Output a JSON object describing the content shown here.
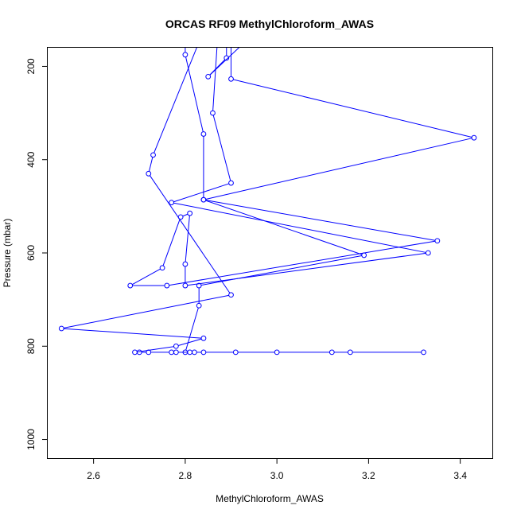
{
  "chart_data": {
    "type": "line",
    "title": "ORCAS RF09 MethylChloroform_AWAS",
    "xlabel": "MethylChloroform_AWAS",
    "ylabel": "Pressure (mbar)",
    "xlim": [
      2.5,
      3.47
    ],
    "ylim": [
      1040,
      160
    ],
    "y_reversed": true,
    "x_ticks": [
      "2.6",
      "2.8",
      "3.0",
      "3.2",
      "3.4"
    ],
    "y_ticks": [
      "200",
      "400",
      "600",
      "800",
      "1000"
    ],
    "grid": false,
    "legend": "none",
    "series": [
      {
        "color": "#0000ff",
        "marker": "open-circle",
        "points": [
          {
            "x": 3.32,
            "y": 813
          },
          {
            "x": 3.16,
            "y": 813
          },
          {
            "x": 3.12,
            "y": 813
          },
          {
            "x": 3.0,
            "y": 813
          },
          {
            "x": 2.91,
            "y": 813
          },
          {
            "x": 2.84,
            "y": 813
          },
          {
            "x": 2.82,
            "y": 813
          },
          {
            "x": 2.81,
            "y": 813
          },
          {
            "x": 2.78,
            "y": 813
          },
          {
            "x": 2.77,
            "y": 813
          },
          {
            "x": 2.72,
            "y": 813
          },
          {
            "x": 2.7,
            "y": 813
          },
          {
            "x": 2.69,
            "y": 813
          },
          {
            "x": 2.78,
            "y": 800
          },
          {
            "x": 2.84,
            "y": 783
          },
          {
            "x": 2.53,
            "y": 762
          },
          {
            "x": 2.9,
            "y": 690
          },
          {
            "x": 2.72,
            "y": 430
          },
          {
            "x": 2.73,
            "y": 390
          },
          {
            "x": 2.83,
            "y": 148
          },
          {
            "x": 2.8,
            "y": 148
          },
          {
            "x": 2.8,
            "y": 175
          },
          {
            "x": 2.84,
            "y": 345
          },
          {
            "x": 2.84,
            "y": 486
          },
          {
            "x": 3.35,
            "y": 574
          },
          {
            "x": 2.76,
            "y": 670
          },
          {
            "x": 2.68,
            "y": 670
          },
          {
            "x": 2.75,
            "y": 632
          },
          {
            "x": 2.79,
            "y": 523
          },
          {
            "x": 2.81,
            "y": 515
          },
          {
            "x": 2.8,
            "y": 624
          },
          {
            "x": 2.8,
            "y": 670
          },
          {
            "x": 3.33,
            "y": 600
          },
          {
            "x": 2.77,
            "y": 492
          },
          {
            "x": 2.9,
            "y": 450
          },
          {
            "x": 2.86,
            "y": 300
          },
          {
            "x": 2.87,
            "y": 148
          },
          {
            "x": 2.89,
            "y": 148
          },
          {
            "x": 2.89,
            "y": 182
          },
          {
            "x": 2.85,
            "y": 222
          },
          {
            "x": 2.93,
            "y": 148
          },
          {
            "x": 2.9,
            "y": 148
          },
          {
            "x": 2.9,
            "y": 227
          },
          {
            "x": 3.43,
            "y": 353
          },
          {
            "x": 2.84,
            "y": 486
          },
          {
            "x": 3.19,
            "y": 605
          },
          {
            "x": 2.83,
            "y": 670
          },
          {
            "x": 2.83,
            "y": 713
          },
          {
            "x": 2.8,
            "y": 813
          }
        ]
      }
    ]
  }
}
